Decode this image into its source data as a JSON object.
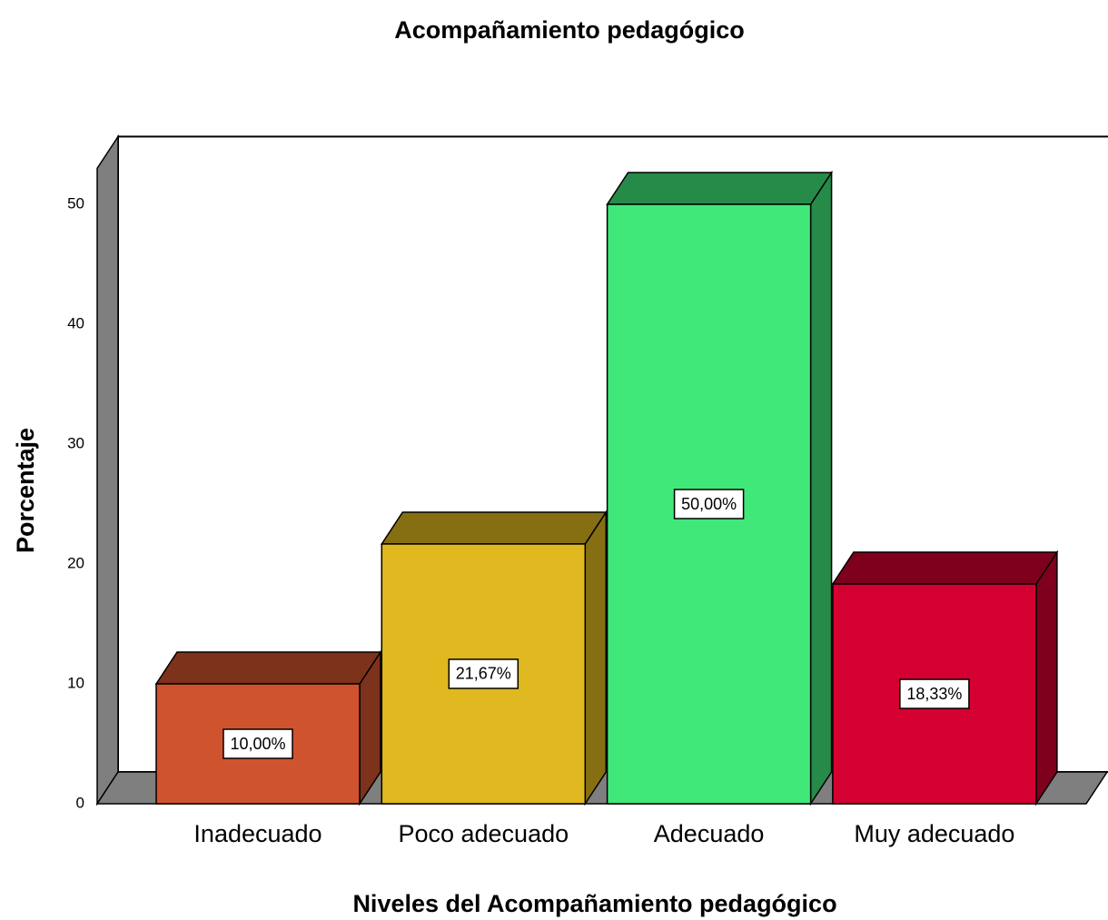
{
  "chart_data": {
    "type": "bar3d",
    "title": "Acompañamiento pedagógico",
    "x_label": "Niveles del Acompañamiento pedagógico",
    "y_label": "Porcentaje",
    "categories": [
      "Inadecuado",
      "Poco adecuado",
      "Adecuado",
      "Muy adecuado"
    ],
    "values": [
      10,
      21.67,
      50,
      18.33
    ],
    "value_labels": [
      "10,00%",
      "21,67%",
      "50,00%",
      "18,33%"
    ],
    "colors": [
      "#d0532f",
      "#e0b81f",
      "#40e87a",
      "#d40031"
    ],
    "ylim": [
      0,
      53
    ],
    "yticks": [
      0,
      10,
      20,
      30,
      40,
      50
    ]
  }
}
